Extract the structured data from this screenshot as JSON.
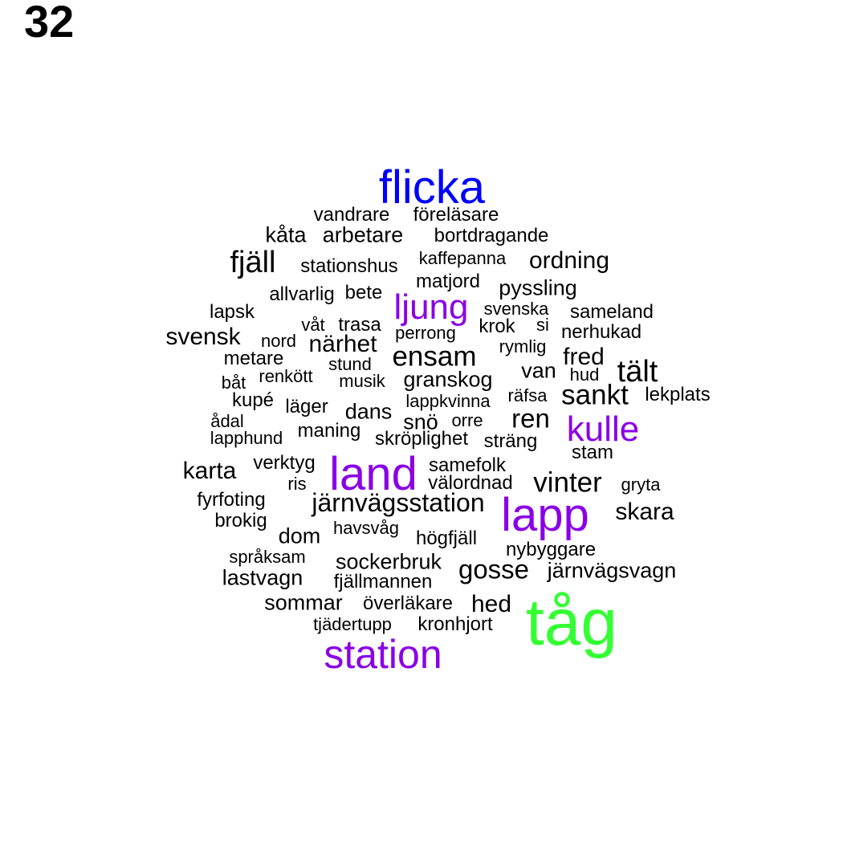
{
  "page_number": "32",
  "colors": {
    "default": "#000000",
    "blue": "#0000ff",
    "purple": "#8a00e6",
    "green": "#33ff33"
  },
  "words": [
    {
      "text": "flicka",
      "color": "blue"
    },
    {
      "text": "vandrare",
      "color": "default"
    },
    {
      "text": "föreläsare",
      "color": "default"
    },
    {
      "text": "kåta",
      "color": "default"
    },
    {
      "text": "arbetare",
      "color": "default"
    },
    {
      "text": "bortdragande",
      "color": "default"
    },
    {
      "text": "fjäll",
      "color": "default"
    },
    {
      "text": "stationshus",
      "color": "default"
    },
    {
      "text": "kaffepanna",
      "color": "default"
    },
    {
      "text": "ordning",
      "color": "default"
    },
    {
      "text": "matjord",
      "color": "default"
    },
    {
      "text": "allvarlig",
      "color": "default"
    },
    {
      "text": "bete",
      "color": "default"
    },
    {
      "text": "pyssling",
      "color": "default"
    },
    {
      "text": "ljung",
      "color": "purple"
    },
    {
      "text": "lapsk",
      "color": "default"
    },
    {
      "text": "svenska",
      "color": "default"
    },
    {
      "text": "sameland",
      "color": "default"
    },
    {
      "text": "våt",
      "color": "default"
    },
    {
      "text": "trasa",
      "color": "default"
    },
    {
      "text": "krok",
      "color": "default"
    },
    {
      "text": "si",
      "color": "default"
    },
    {
      "text": "svensk",
      "color": "default"
    },
    {
      "text": "perrong",
      "color": "default"
    },
    {
      "text": "nerhukad",
      "color": "default"
    },
    {
      "text": "nord",
      "color": "default"
    },
    {
      "text": "närhet",
      "color": "default"
    },
    {
      "text": "rymlig",
      "color": "default"
    },
    {
      "text": "ensam",
      "color": "default"
    },
    {
      "text": "metare",
      "color": "default"
    },
    {
      "text": "fred",
      "color": "default"
    },
    {
      "text": "stund",
      "color": "default"
    },
    {
      "text": "van",
      "color": "default"
    },
    {
      "text": "hud",
      "color": "default"
    },
    {
      "text": "tält",
      "color": "default"
    },
    {
      "text": "renkött",
      "color": "default"
    },
    {
      "text": "båt",
      "color": "default"
    },
    {
      "text": "musik",
      "color": "default"
    },
    {
      "text": "granskog",
      "color": "default"
    },
    {
      "text": "räfsa",
      "color": "default"
    },
    {
      "text": "sankt",
      "color": "default"
    },
    {
      "text": "lekplats",
      "color": "default"
    },
    {
      "text": "kupé",
      "color": "default"
    },
    {
      "text": "läger",
      "color": "default"
    },
    {
      "text": "lappkvinna",
      "color": "default"
    },
    {
      "text": "dans",
      "color": "default"
    },
    {
      "text": "ren",
      "color": "default"
    },
    {
      "text": "ådal",
      "color": "default"
    },
    {
      "text": "snö",
      "color": "default"
    },
    {
      "text": "orre",
      "color": "default"
    },
    {
      "text": "kulle",
      "color": "purple"
    },
    {
      "text": "maning",
      "color": "default"
    },
    {
      "text": "lapphund",
      "color": "default"
    },
    {
      "text": "skröplighet",
      "color": "default"
    },
    {
      "text": "sträng",
      "color": "default"
    },
    {
      "text": "stam",
      "color": "default"
    },
    {
      "text": "verktyg",
      "color": "default"
    },
    {
      "text": "samefolk",
      "color": "default"
    },
    {
      "text": "karta",
      "color": "default"
    },
    {
      "text": "land",
      "color": "purple"
    },
    {
      "text": "vinter",
      "color": "default"
    },
    {
      "text": "ris",
      "color": "default"
    },
    {
      "text": "välordnad",
      "color": "default"
    },
    {
      "text": "gryta",
      "color": "default"
    },
    {
      "text": "fyrfoting",
      "color": "default"
    },
    {
      "text": "järnvägsstation",
      "color": "default"
    },
    {
      "text": "lapp",
      "color": "purple"
    },
    {
      "text": "skara",
      "color": "default"
    },
    {
      "text": "brokig",
      "color": "default"
    },
    {
      "text": "havsvåg",
      "color": "default"
    },
    {
      "text": "dom",
      "color": "default"
    },
    {
      "text": "högfjäll",
      "color": "default"
    },
    {
      "text": "nybyggare",
      "color": "default"
    },
    {
      "text": "språksam",
      "color": "default"
    },
    {
      "text": "sockerbruk",
      "color": "default"
    },
    {
      "text": "gosse",
      "color": "default"
    },
    {
      "text": "järnvägsvagn",
      "color": "default"
    },
    {
      "text": "lastvagn",
      "color": "default"
    },
    {
      "text": "fjällmannen",
      "color": "default"
    },
    {
      "text": "sommar",
      "color": "default"
    },
    {
      "text": "överläkare",
      "color": "default"
    },
    {
      "text": "hed",
      "color": "default"
    },
    {
      "text": "tåg",
      "color": "green"
    },
    {
      "text": "tjädertupp",
      "color": "default"
    },
    {
      "text": "kronhjort",
      "color": "default"
    },
    {
      "text": "station",
      "color": "purple"
    }
  ]
}
